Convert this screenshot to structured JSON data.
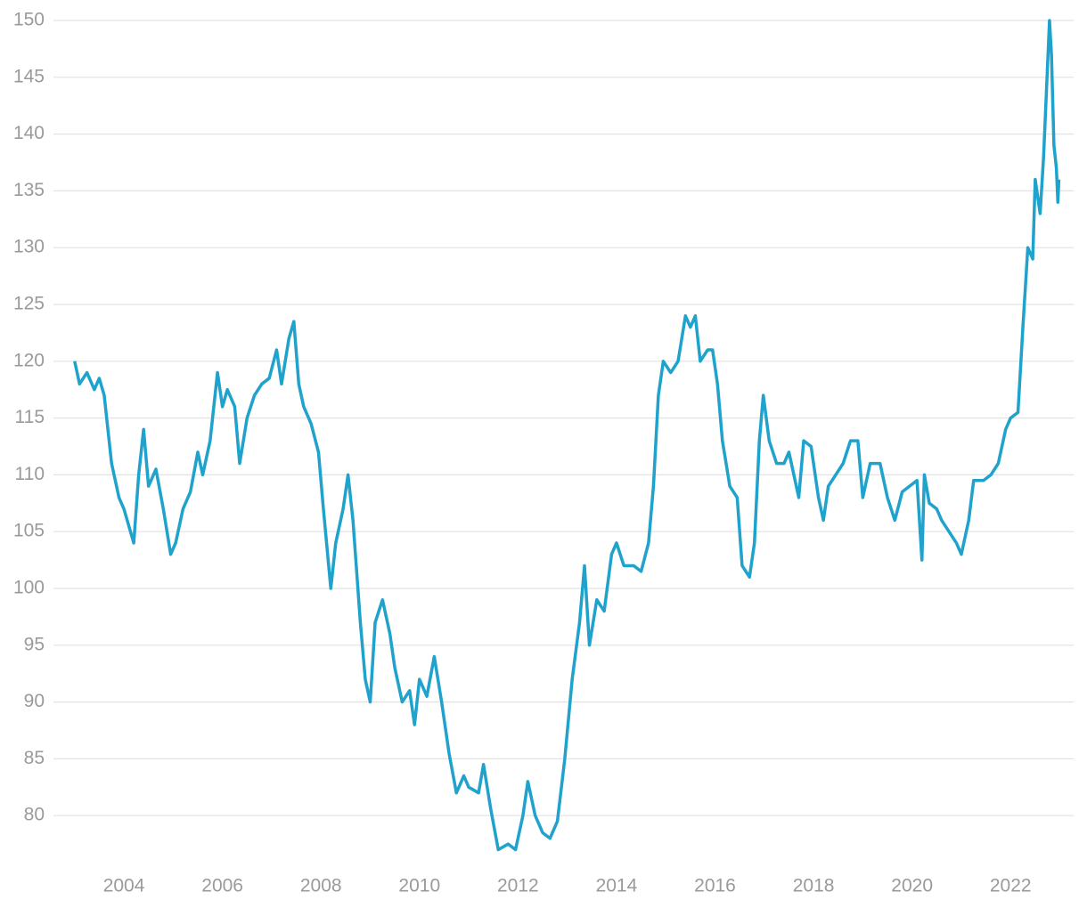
{
  "chart_data": {
    "type": "line",
    "x": [
      2003.0,
      2003.1,
      2003.25,
      2003.4,
      2003.5,
      2003.6,
      2003.75,
      2003.9,
      2004.0,
      2004.1,
      2004.2,
      2004.3,
      2004.4,
      2004.5,
      2004.65,
      2004.8,
      2004.95,
      2005.05,
      2005.2,
      2005.35,
      2005.5,
      2005.6,
      2005.75,
      2005.9,
      2006.0,
      2006.1,
      2006.25,
      2006.35,
      2006.5,
      2006.65,
      2006.8,
      2006.95,
      2007.1,
      2007.2,
      2007.35,
      2007.45,
      2007.55,
      2007.65,
      2007.8,
      2007.95,
      2008.05,
      2008.2,
      2008.3,
      2008.45,
      2008.55,
      2008.65,
      2008.8,
      2008.9,
      2009.0,
      2009.1,
      2009.25,
      2009.4,
      2009.5,
      2009.65,
      2009.8,
      2009.9,
      2010.0,
      2010.15,
      2010.3,
      2010.45,
      2010.6,
      2010.75,
      2010.9,
      2011.0,
      2011.2,
      2011.3,
      2011.45,
      2011.6,
      2011.8,
      2011.95,
      2012.1,
      2012.2,
      2012.35,
      2012.5,
      2012.65,
      2012.8,
      2012.95,
      2013.1,
      2013.25,
      2013.35,
      2013.45,
      2013.6,
      2013.75,
      2013.9,
      2014.0,
      2014.15,
      2014.35,
      2014.5,
      2014.65,
      2014.75,
      2014.85,
      2014.95,
      2015.1,
      2015.25,
      2015.4,
      2015.5,
      2015.6,
      2015.7,
      2015.85,
      2015.95,
      2016.05,
      2016.15,
      2016.3,
      2016.45,
      2016.55,
      2016.7,
      2016.8,
      2016.9,
      2016.98,
      2017.1,
      2017.25,
      2017.4,
      2017.5,
      2017.6,
      2017.7,
      2017.8,
      2017.95,
      2018.1,
      2018.2,
      2018.3,
      2018.45,
      2018.6,
      2018.75,
      2018.9,
      2019.0,
      2019.15,
      2019.35,
      2019.5,
      2019.65,
      2019.8,
      2019.95,
      2020.1,
      2020.2,
      2020.25,
      2020.35,
      2020.5,
      2020.6,
      2020.75,
      2020.9,
      2021.0,
      2021.15,
      2021.25,
      2021.45,
      2021.6,
      2021.75,
      2021.9,
      2022.0,
      2022.15,
      2022.25,
      2022.35,
      2022.45,
      2022.5,
      2022.6,
      2022.67,
      2022.73,
      2022.79,
      2022.83,
      2022.88,
      2022.93,
      2022.96,
      2022.98
    ],
    "series": [
      {
        "color": "#1fa2cc",
        "values": [
          120,
          118,
          119,
          117.5,
          118.5,
          117,
          111,
          108,
          107,
          105.5,
          104,
          110,
          114,
          109,
          110.5,
          107,
          103,
          104,
          107,
          108.5,
          112,
          110,
          113,
          119,
          116,
          117.5,
          116,
          111,
          115,
          117,
          118,
          118.5,
          121,
          118,
          122,
          123.5,
          118,
          116,
          114.5,
          112,
          107,
          100,
          104,
          107,
          110,
          106,
          97,
          92,
          90,
          97,
          99,
          96,
          93,
          90,
          91,
          88,
          92,
          90.5,
          94,
          90,
          85.5,
          82,
          83.5,
          82.5,
          82,
          84.5,
          80.5,
          77,
          77.5,
          77,
          80,
          83,
          80,
          78.5,
          78,
          79.5,
          85,
          92,
          97,
          102,
          95,
          99,
          98,
          103,
          104,
          102,
          102,
          101.5,
          104,
          109,
          117,
          120,
          119,
          120,
          124,
          123,
          124,
          120,
          121,
          121,
          118,
          113,
          109,
          108,
          102,
          101,
          104,
          113,
          117,
          113,
          111,
          111,
          112,
          110,
          108,
          113,
          112.5,
          108,
          106,
          109,
          110,
          111,
          113,
          113,
          108,
          111,
          111,
          108,
          106,
          108.5,
          109,
          109.5,
          102.5,
          110,
          107.5,
          107,
          106,
          105,
          104,
          103,
          106,
          109.5,
          109.5,
          110,
          111,
          114,
          115,
          115.5,
          123,
          130,
          129,
          136,
          133,
          138,
          144,
          150,
          147,
          139,
          137,
          134,
          136
        ]
      }
    ],
    "xlim": [
      2002.57,
      2023.28
    ],
    "xticks": [
      2004,
      2006,
      2008,
      2010,
      2012,
      2014,
      2016,
      2018,
      2020,
      2022
    ],
    "ylim": [
      75,
      150
    ],
    "yticks": [
      80,
      85,
      90,
      95,
      100,
      105,
      110,
      115,
      120,
      125,
      130,
      135,
      140,
      145,
      150
    ],
    "grid": true
  }
}
